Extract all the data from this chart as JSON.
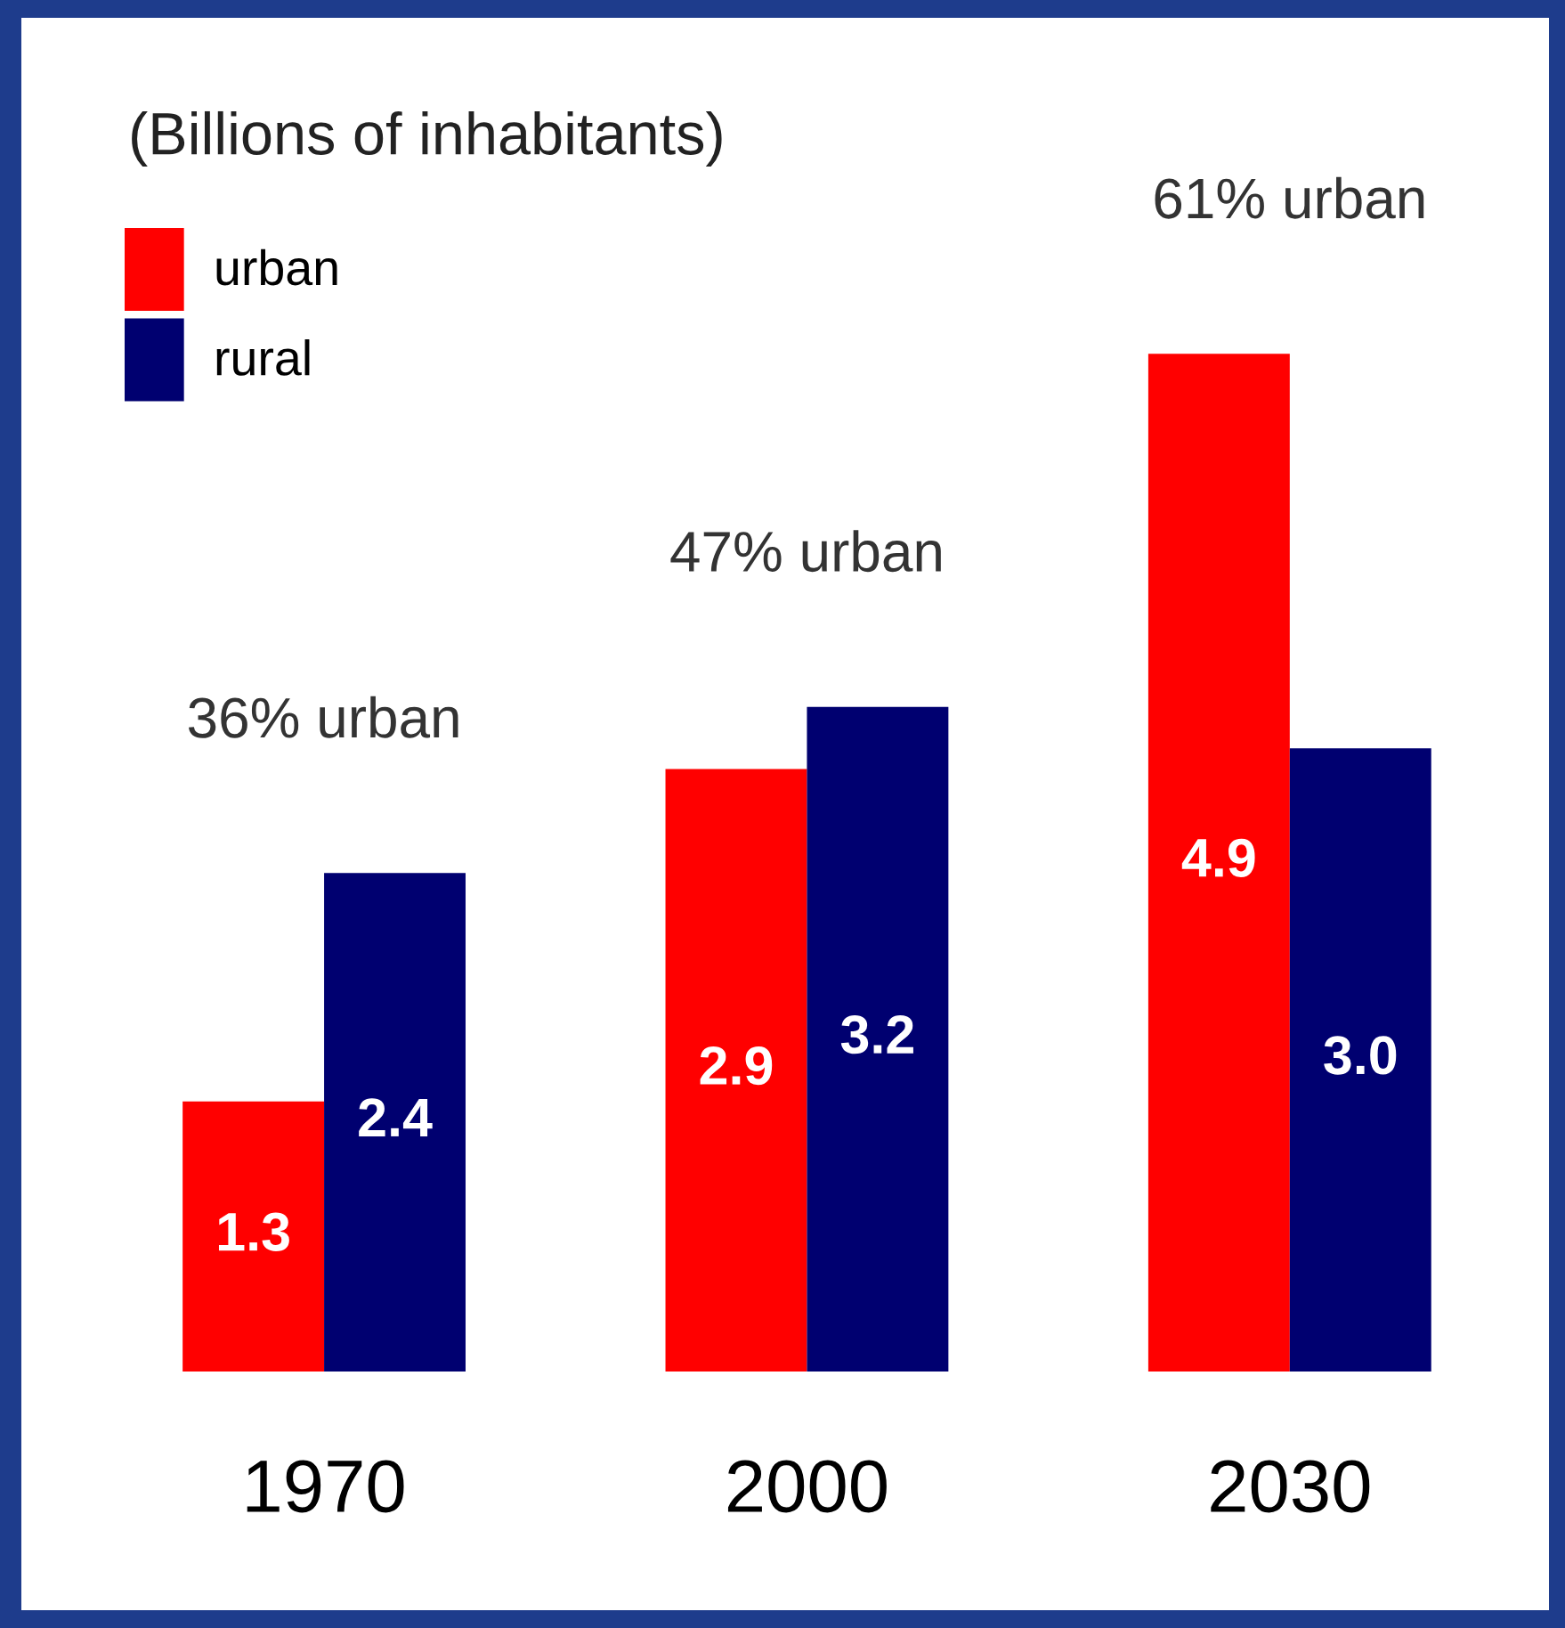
{
  "chart_data": {
    "type": "bar",
    "title": "(Billions of inhabitants)",
    "categories": [
      "1970",
      "2000",
      "2030"
    ],
    "series": [
      {
        "name": "urban",
        "color": "#ff0000",
        "values": [
          1.3,
          2.9,
          4.9
        ],
        "value_labels": [
          "1.3",
          "2.9",
          "4.9"
        ]
      },
      {
        "name": "rural",
        "color": "#000070",
        "values": [
          2.4,
          3.2,
          3.0
        ],
        "value_labels": [
          "2.4",
          "3.2",
          "3.0"
        ]
      }
    ],
    "legend": "top left",
    "annotations": [
      "36% urban",
      "47% urban",
      "61% urban"
    ]
  }
}
